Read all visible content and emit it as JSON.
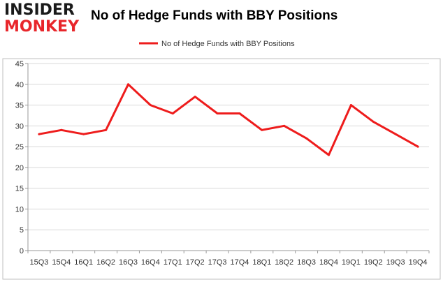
{
  "brand": {
    "line1": "INSIDER",
    "line2": "MONKEY"
  },
  "colors": {
    "series": "#ee1c1c",
    "grid": "#d9d9d9",
    "brand_red": "#e8262b"
  },
  "chart_data": {
    "type": "line",
    "title": "No of Hedge Funds with BBY Positions",
    "xlabel": "",
    "ylabel": "",
    "ylim": [
      0,
      45
    ],
    "yticks": [
      0,
      5,
      10,
      15,
      20,
      25,
      30,
      35,
      40,
      45
    ],
    "grid": true,
    "legend_position": "top-center",
    "categories": [
      "15Q3",
      "15Q4",
      "16Q1",
      "16Q2",
      "16Q3",
      "16Q4",
      "17Q1",
      "17Q2",
      "17Q3",
      "17Q4",
      "18Q1",
      "18Q2",
      "18Q3",
      "18Q4",
      "19Q1",
      "19Q2",
      "19Q3",
      "19Q4"
    ],
    "series": [
      {
        "name": "No of Hedge Funds with BBY Positions",
        "values": [
          28,
          29,
          28,
          29,
          40,
          35,
          33,
          37,
          33,
          33,
          29,
          30,
          27,
          23,
          35,
          31,
          28,
          25
        ]
      }
    ]
  }
}
